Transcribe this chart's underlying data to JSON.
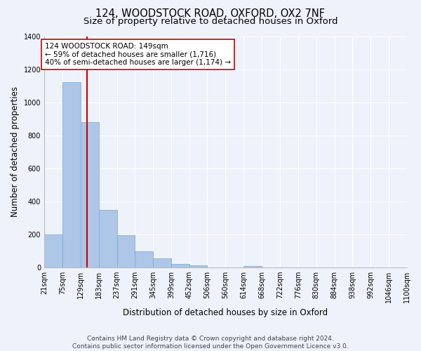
{
  "title": "124, WOODSTOCK ROAD, OXFORD, OX2 7NF",
  "subtitle": "Size of property relative to detached houses in Oxford",
  "xlabel": "Distribution of detached houses by size in Oxford",
  "ylabel": "Number of detached properties",
  "bar_edges": [
    21,
    75,
    129,
    183,
    237,
    291,
    345,
    399,
    452,
    506,
    560,
    614,
    668,
    722,
    776,
    830,
    884,
    938,
    992,
    1046,
    1100
  ],
  "bar_heights": [
    200,
    1120,
    880,
    350,
    195,
    100,
    55,
    20,
    15,
    0,
    0,
    10,
    0,
    0,
    0,
    0,
    0,
    0,
    0,
    0
  ],
  "bar_color": "#aec6e8",
  "bar_edge_color": "#6fa8d6",
  "property_line_x": 149,
  "property_line_color": "#cc0000",
  "annotation_text": "124 WOODSTOCK ROAD: 149sqm\n← 59% of detached houses are smaller (1,716)\n40% of semi-detached houses are larger (1,174) →",
  "annotation_box_color": "#ffffff",
  "annotation_box_edge_color": "#cc0000",
  "ylim": [
    0,
    1400
  ],
  "yticks": [
    0,
    200,
    400,
    600,
    800,
    1000,
    1200,
    1400
  ],
  "tick_labels": [
    "21sqm",
    "75sqm",
    "129sqm",
    "183sqm",
    "237sqm",
    "291sqm",
    "345sqm",
    "399sqm",
    "452sqm",
    "506sqm",
    "560sqm",
    "614sqm",
    "668sqm",
    "722sqm",
    "776sqm",
    "830sqm",
    "884sqm",
    "938sqm",
    "992sqm",
    "1046sqm",
    "1100sqm"
  ],
  "footer_line1": "Contains HM Land Registry data © Crown copyright and database right 2024.",
  "footer_line2": "Contains public sector information licensed under the Open Government Licence v3.0.",
  "bg_color": "#eef2fa",
  "grid_color": "#ffffff",
  "title_fontsize": 10.5,
  "subtitle_fontsize": 9.5,
  "axis_label_fontsize": 8.5,
  "tick_fontsize": 7,
  "footer_fontsize": 6.5,
  "annotation_fontsize": 7.5
}
